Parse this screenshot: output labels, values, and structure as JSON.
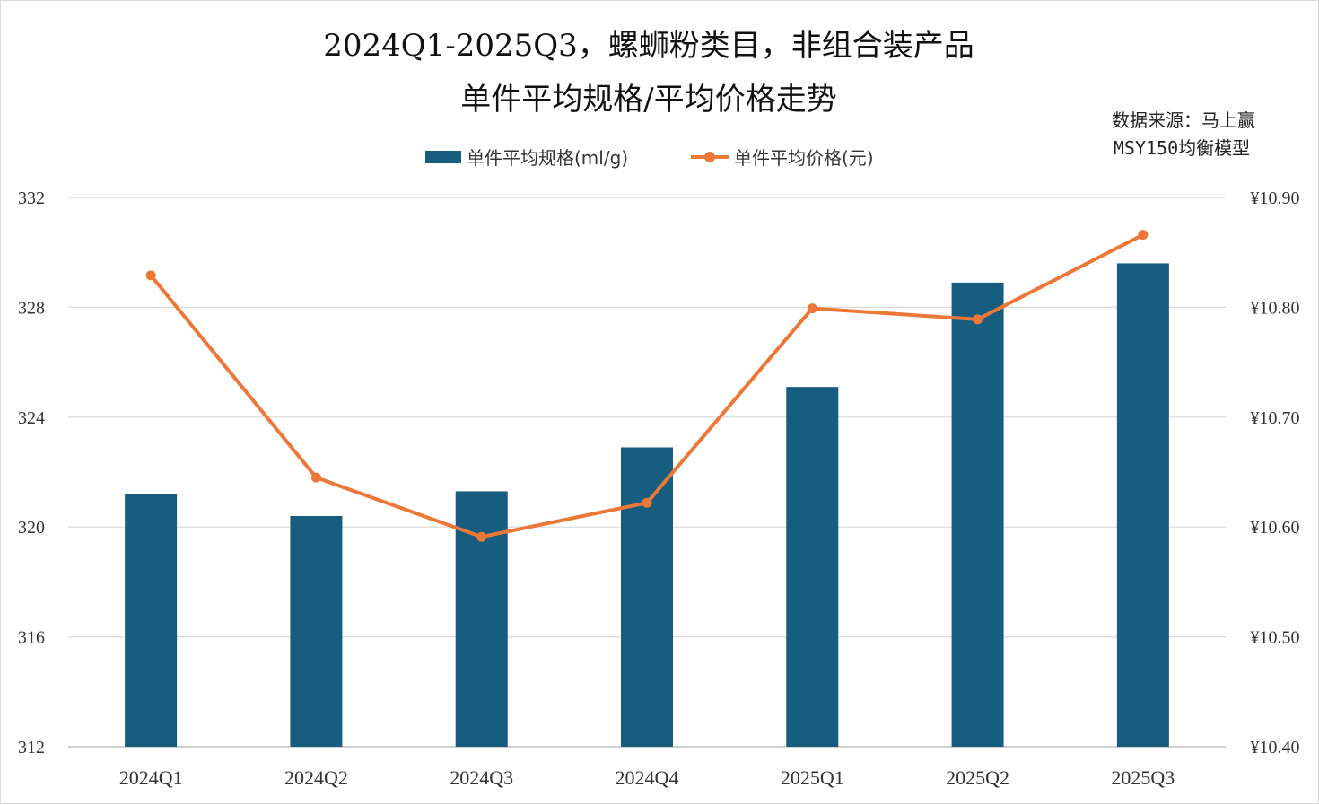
{
  "chart_data": {
    "type": "bar",
    "title_line1": "2024Q1-2025Q3，螺蛳粉类目，非组合装产品",
    "title_line2": "单件平均规格/平均价格走势",
    "source_line1": "数据来源：马上赢",
    "source_line2": "MSY150均衡模型",
    "categories": [
      "2024Q1",
      "2024Q2",
      "2024Q3",
      "2024Q4",
      "2025Q1",
      "2025Q2",
      "2025Q3"
    ],
    "series": [
      {
        "name": "单件平均规格(ml/g)",
        "type": "bar",
        "axis": "left",
        "color": "#175d7f",
        "values": [
          321.2,
          320.4,
          321.3,
          322.9,
          325.1,
          328.9,
          329.6
        ]
      },
      {
        "name": "单件平均价格(元)",
        "type": "line",
        "axis": "right",
        "color": "#ec7737",
        "values": [
          10.829,
          10.645,
          10.591,
          10.622,
          10.799,
          10.789,
          10.866
        ]
      }
    ],
    "y_left": {
      "ylim": [
        312,
        332
      ],
      "ticks": [
        "312",
        "316",
        "320",
        "324",
        "328",
        "332"
      ]
    },
    "y_right": {
      "ylim": [
        10.4,
        10.9
      ],
      "ticks": [
        "¥10.40",
        "¥10.50",
        "¥10.60",
        "¥10.70",
        "¥10.80",
        "¥10.90"
      ]
    },
    "grid": true,
    "legend_position": "top-center",
    "gridline_color": "#d9d9d9",
    "axis_line_color": "#bfbfbf"
  }
}
